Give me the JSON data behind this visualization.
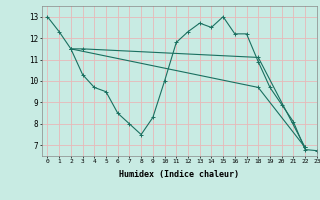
{
  "xlabel": "Humidex (Indice chaleur)",
  "xlim": [
    -0.5,
    23
  ],
  "ylim": [
    6.5,
    13.5
  ],
  "yticks": [
    7,
    8,
    9,
    10,
    11,
    12,
    13
  ],
  "xticks": [
    0,
    1,
    2,
    3,
    4,
    5,
    6,
    7,
    8,
    9,
    10,
    11,
    12,
    13,
    14,
    15,
    16,
    17,
    18,
    19,
    20,
    21,
    22,
    23
  ],
  "background_color": "#c8ebe3",
  "grid_color": "#e8b8b8",
  "line_color": "#1a7060",
  "line1": {
    "x": [
      0,
      1,
      2,
      3,
      4,
      5,
      6,
      7,
      8,
      9,
      10,
      11,
      12,
      13,
      14,
      15,
      16,
      17,
      18,
      19,
      20,
      21,
      22,
      23
    ],
    "y": [
      13.0,
      12.3,
      11.5,
      10.3,
      9.7,
      9.5,
      8.5,
      8.0,
      7.5,
      8.3,
      10.0,
      11.8,
      12.3,
      12.7,
      12.5,
      13.0,
      12.2,
      12.2,
      10.9,
      9.7,
      8.9,
      8.1,
      6.8,
      6.75
    ]
  },
  "line2": {
    "x": [
      2,
      3,
      18,
      22
    ],
    "y": [
      11.5,
      11.5,
      11.1,
      6.9
    ]
  },
  "line3": {
    "x": [
      2,
      18,
      22
    ],
    "y": [
      11.5,
      9.7,
      6.9
    ]
  }
}
